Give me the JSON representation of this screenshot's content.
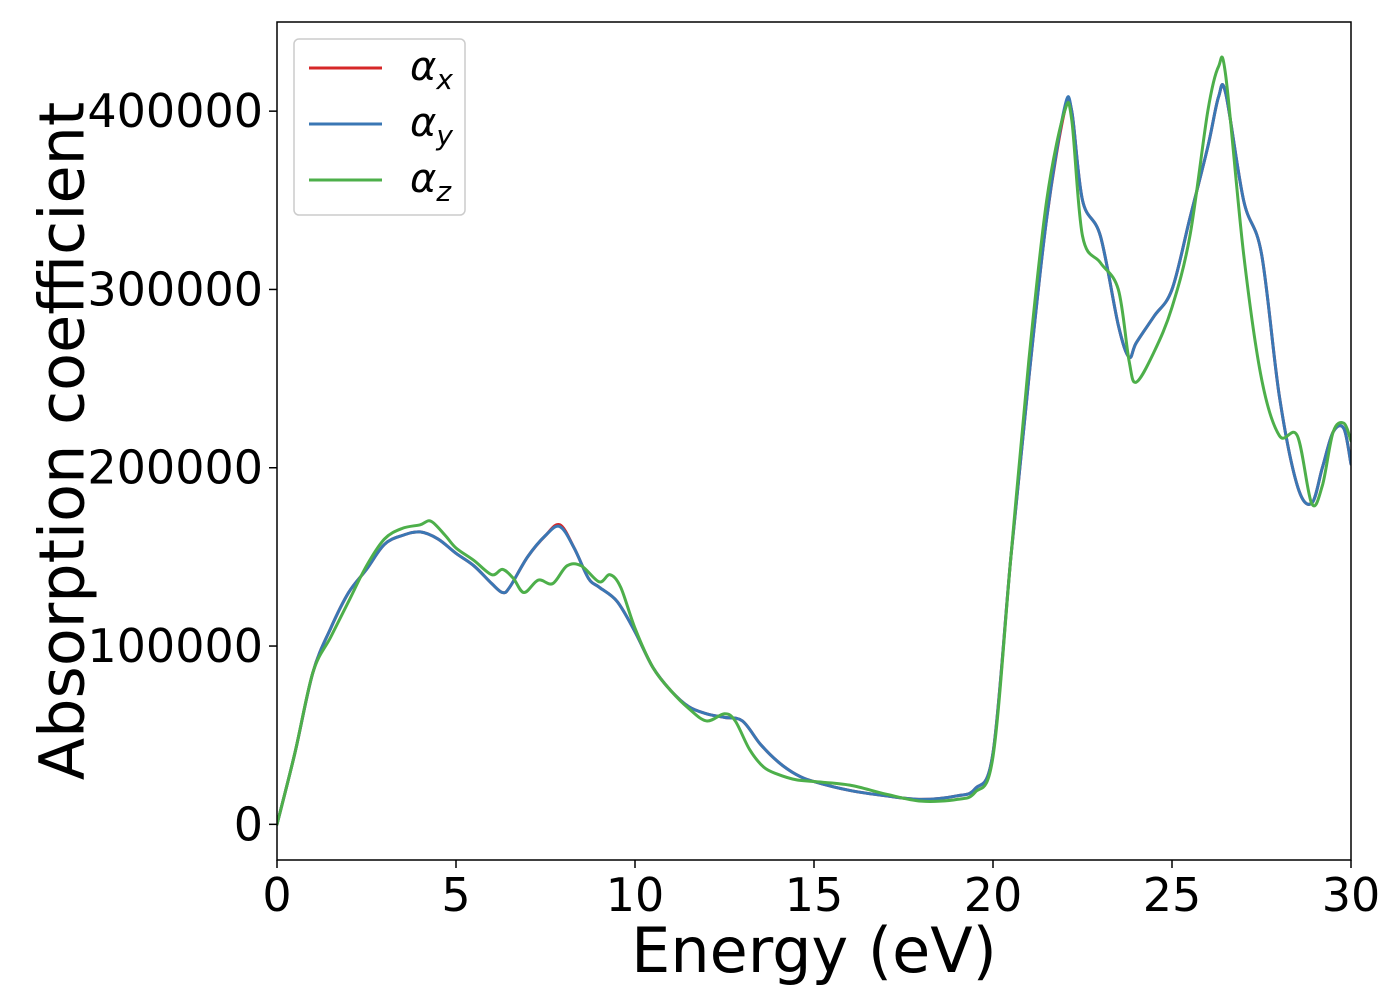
{
  "chart_data": {
    "type": "line",
    "title": "",
    "xlabel": "Energy (eV)",
    "ylabel": "Absorption coefficient",
    "xlim": [
      0,
      30
    ],
    "ylim": [
      -20000,
      450000
    ],
    "xticks": [
      0,
      5,
      10,
      15,
      20,
      25,
      30
    ],
    "xtick_labels": [
      "0",
      "5",
      "10",
      "15",
      "20",
      "25",
      "30"
    ],
    "yticks": [
      0,
      100000,
      200000,
      300000,
      400000
    ],
    "ytick_labels": [
      "0",
      "100000",
      "200000",
      "300000",
      "400000"
    ],
    "grid": false,
    "legend": "top-left",
    "series": [
      {
        "name": "α",
        "subscript": "x",
        "color": "#d62728",
        "x": [
          0,
          0.5,
          1,
          1.5,
          2,
          2.5,
          3,
          3.5,
          4,
          4.5,
          5,
          5.5,
          6,
          6.3,
          6.5,
          7,
          7.5,
          7.9,
          8.3,
          8.7,
          9,
          9.5,
          10,
          10.5,
          11,
          11.5,
          12,
          12.5,
          13,
          13.5,
          14,
          14.5,
          15,
          16,
          17,
          18,
          19,
          19.5,
          20,
          20.5,
          21,
          21.5,
          22,
          22.2,
          22.5,
          23,
          23.5,
          23.8,
          24,
          24.5,
          25,
          25.5,
          26,
          26.3,
          26.5,
          27,
          27.5,
          28,
          28.5,
          28.9,
          29.2,
          29.5,
          29.8,
          30
        ],
        "values": [
          0,
          40000,
          85000,
          110000,
          130000,
          143000,
          157000,
          162000,
          164000,
          160000,
          152000,
          145000,
          135000,
          130000,
          133000,
          150000,
          162000,
          168000,
          155000,
          138000,
          133000,
          125000,
          108000,
          88000,
          75000,
          66000,
          62000,
          60000,
          58000,
          45000,
          35000,
          28000,
          24000,
          19000,
          16000,
          14000,
          16000,
          20000,
          40000,
          150000,
          250000,
          340000,
          400000,
          400000,
          350000,
          330000,
          280000,
          262000,
          270000,
          285000,
          300000,
          340000,
          380000,
          408000,
          410000,
          350000,
          320000,
          240000,
          190000,
          180000,
          200000,
          220000,
          222000,
          202000
        ]
      },
      {
        "name": "α",
        "subscript": "y",
        "color": "#3a77b4",
        "x": [
          0,
          0.5,
          1,
          1.5,
          2,
          2.5,
          3,
          3.5,
          4,
          4.5,
          5,
          5.5,
          6,
          6.3,
          6.5,
          7,
          7.5,
          7.9,
          8.3,
          8.7,
          9,
          9.5,
          10,
          10.5,
          11,
          11.5,
          12,
          12.5,
          13,
          13.5,
          14,
          14.5,
          15,
          16,
          17,
          18,
          19,
          19.5,
          20,
          20.5,
          21,
          21.5,
          22,
          22.2,
          22.5,
          23,
          23.5,
          23.8,
          24,
          24.5,
          25,
          25.5,
          26,
          26.3,
          26.5,
          27,
          27.5,
          28,
          28.5,
          28.9,
          29.2,
          29.5,
          29.8,
          30
        ],
        "values": [
          0,
          40000,
          85000,
          110000,
          130000,
          143000,
          157000,
          162000,
          164000,
          160000,
          152000,
          145000,
          135000,
          130000,
          133000,
          150000,
          162000,
          167000,
          155000,
          138000,
          133000,
          125000,
          108000,
          88000,
          75000,
          66000,
          62000,
          60000,
          58000,
          45000,
          35000,
          28000,
          24000,
          19000,
          16000,
          14000,
          16000,
          20000,
          40000,
          150000,
          250000,
          340000,
          402000,
          400000,
          350000,
          330000,
          280000,
          262000,
          270000,
          285000,
          300000,
          340000,
          380000,
          408000,
          410000,
          350000,
          320000,
          240000,
          190000,
          180000,
          200000,
          220000,
          222000,
          202000
        ]
      },
      {
        "name": "α",
        "subscript": "z",
        "color": "#4daf4a",
        "x": [
          0,
          0.5,
          1,
          1.5,
          2,
          2.5,
          3,
          3.5,
          4,
          4.3,
          4.7,
          5,
          5.5,
          6,
          6.3,
          6.6,
          6.9,
          7.3,
          7.7,
          8.1,
          8.5,
          9,
          9.3,
          9.6,
          10,
          10.5,
          11,
          11.5,
          12,
          12.5,
          12.8,
          13.2,
          13.6,
          14,
          14.5,
          15,
          16,
          17,
          18,
          19,
          19.5,
          20,
          20.5,
          21,
          21.5,
          22,
          22.2,
          22.5,
          23,
          23.5,
          23.8,
          24,
          24.5,
          25,
          25.5,
          26,
          26.3,
          26.5,
          27,
          27.5,
          28,
          28.5,
          28.9,
          29.2,
          29.5,
          29.8,
          30
        ],
        "values": [
          0,
          40000,
          85000,
          105000,
          125000,
          145000,
          160000,
          166000,
          168000,
          170000,
          162000,
          155000,
          148000,
          140000,
          143000,
          138000,
          130000,
          137000,
          135000,
          145000,
          145000,
          136000,
          140000,
          133000,
          110000,
          88000,
          75000,
          65000,
          58000,
          62000,
          58000,
          42000,
          32000,
          28000,
          25000,
          24000,
          22000,
          17000,
          13000,
          14000,
          18000,
          38000,
          150000,
          260000,
          350000,
          400000,
          395000,
          330000,
          315000,
          300000,
          260000,
          248000,
          265000,
          290000,
          330000,
          400000,
          425000,
          420000,
          320000,
          250000,
          218000,
          218000,
          180000,
          190000,
          220000,
          225000,
          215000
        ]
      }
    ]
  }
}
